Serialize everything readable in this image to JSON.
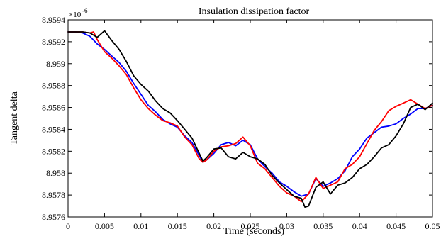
{
  "chart_data": {
    "type": "line",
    "title": "Insulation dissipation factor",
    "xlabel": "Time (seconds)",
    "ylabel": "Tangent delta",
    "exponent_label": "×10",
    "exponent_power": "-6",
    "xlim": [
      0,
      0.05
    ],
    "ylim": [
      8.9576,
      8.9594
    ],
    "x_ticks": [
      0,
      0.005,
      0.01,
      0.015,
      0.02,
      0.025,
      0.03,
      0.035,
      0.04,
      0.045,
      0.05
    ],
    "x_tick_labels": [
      "0",
      "0.005",
      "0.01",
      "0.015",
      "0.02",
      "0.025",
      "0.03",
      "0.035",
      "0.04",
      "0.045",
      "0.05"
    ],
    "y_ticks": [
      8.9576,
      8.9578,
      8.958,
      8.9582,
      8.9584,
      8.9586,
      8.9588,
      8.959,
      8.9592,
      8.9594
    ],
    "y_tick_labels": [
      "8.9576",
      "8.9578",
      "8.958",
      "8.9582",
      "8.9584",
      "8.9586",
      "8.9588",
      "8.959",
      "8.9592",
      "8.9594"
    ],
    "grid": false,
    "series": [
      {
        "color": "#0000ff",
        "x": [
          0,
          0.001,
          0.002,
          0.003,
          0.004,
          0.005,
          0.006,
          0.007,
          0.008,
          0.009,
          0.01,
          0.011,
          0.012,
          0.013,
          0.014,
          0.015,
          0.016,
          0.017,
          0.018,
          0.0185,
          0.019,
          0.02,
          0.021,
          0.022,
          0.023,
          0.024,
          0.025,
          0.026,
          0.027,
          0.028,
          0.029,
          0.03,
          0.031,
          0.032,
          0.033,
          0.034,
          0.035,
          0.036,
          0.037,
          0.038,
          0.039,
          0.04,
          0.041,
          0.042,
          0.043,
          0.044,
          0.045,
          0.046,
          0.047,
          0.048,
          0.049,
          0.05
        ],
        "y": [
          8.95929,
          8.95929,
          8.95928,
          8.95925,
          8.95918,
          8.95913,
          8.95907,
          8.95901,
          8.95893,
          8.95882,
          8.95872,
          8.95862,
          8.95856,
          8.95849,
          8.95845,
          8.95842,
          8.95834,
          8.95828,
          8.95816,
          8.9581,
          8.95812,
          8.95818,
          8.95826,
          8.95828,
          8.95825,
          8.9583,
          8.95826,
          8.95813,
          8.95806,
          8.958,
          8.95792,
          8.95788,
          8.95783,
          8.95779,
          8.95781,
          8.95795,
          8.95788,
          8.95791,
          8.95795,
          8.95802,
          8.95815,
          8.95822,
          8.95832,
          8.95837,
          8.95842,
          8.95843,
          8.95845,
          8.9585,
          8.95854,
          8.95859,
          8.95859,
          8.95862
        ]
      },
      {
        "color": "#ff0000",
        "x": [
          0,
          0.001,
          0.002,
          0.003,
          0.0035,
          0.004,
          0.005,
          0.006,
          0.007,
          0.008,
          0.009,
          0.01,
          0.011,
          0.012,
          0.013,
          0.014,
          0.015,
          0.016,
          0.017,
          0.018,
          0.0185,
          0.019,
          0.02,
          0.021,
          0.022,
          0.023,
          0.024,
          0.025,
          0.026,
          0.027,
          0.028,
          0.029,
          0.03,
          0.031,
          0.032,
          0.033,
          0.034,
          0.035,
          0.036,
          0.037,
          0.038,
          0.039,
          0.04,
          0.041,
          0.042,
          0.043,
          0.044,
          0.045,
          0.046,
          0.047,
          0.048,
          0.049,
          0.05
        ],
        "y": [
          8.95929,
          8.95929,
          8.95929,
          8.95928,
          8.95929,
          8.95922,
          8.95911,
          8.95905,
          8.95898,
          8.9589,
          8.95878,
          8.95867,
          8.95859,
          8.95853,
          8.95848,
          8.95846,
          8.95843,
          8.95833,
          8.95826,
          8.95813,
          8.9581,
          8.95812,
          8.9582,
          8.95824,
          8.95825,
          8.95827,
          8.95833,
          8.95825,
          8.95809,
          8.95804,
          8.95796,
          8.95788,
          8.95782,
          8.95779,
          8.95774,
          8.95781,
          8.95796,
          8.95786,
          8.95789,
          8.95792,
          8.95804,
          8.95808,
          8.95815,
          8.95827,
          8.95839,
          8.95847,
          8.95857,
          8.95861,
          8.95864,
          8.95867,
          8.95863,
          8.95859,
          8.95862
        ]
      },
      {
        "color": "#000000",
        "x": [
          0,
          0.001,
          0.002,
          0.003,
          0.004,
          0.005,
          0.006,
          0.007,
          0.008,
          0.009,
          0.01,
          0.011,
          0.012,
          0.013,
          0.014,
          0.015,
          0.016,
          0.017,
          0.018,
          0.0185,
          0.019,
          0.02,
          0.021,
          0.022,
          0.023,
          0.024,
          0.025,
          0.026,
          0.027,
          0.028,
          0.029,
          0.03,
          0.031,
          0.032,
          0.0325,
          0.033,
          0.034,
          0.035,
          0.036,
          0.037,
          0.038,
          0.039,
          0.04,
          0.041,
          0.042,
          0.043,
          0.044,
          0.045,
          0.046,
          0.047,
          0.048,
          0.049,
          0.05
        ],
        "y": [
          8.95929,
          8.95929,
          8.95929,
          8.95928,
          8.95924,
          8.9593,
          8.95921,
          8.95913,
          8.95902,
          8.95889,
          8.95881,
          8.95875,
          8.95866,
          8.95859,
          8.95855,
          8.95848,
          8.9584,
          8.95832,
          8.95818,
          8.95811,
          8.95814,
          8.95822,
          8.95823,
          8.95815,
          8.95813,
          8.95819,
          8.95815,
          8.95813,
          8.95808,
          8.95798,
          8.95791,
          8.95785,
          8.95779,
          8.95777,
          8.95769,
          8.9577,
          8.95787,
          8.95792,
          8.95781,
          8.95789,
          8.95791,
          8.95796,
          8.95804,
          8.95808,
          8.95815,
          8.95823,
          8.95826,
          8.95834,
          8.95845,
          8.9586,
          8.95863,
          8.95858,
          8.95864
        ]
      }
    ]
  }
}
